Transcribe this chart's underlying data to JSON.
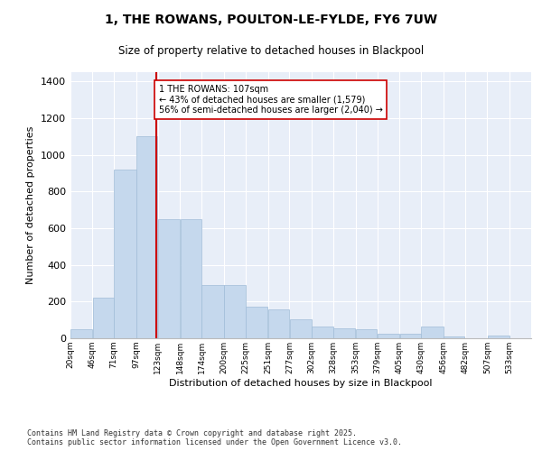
{
  "title": "1, THE ROWANS, POULTON-LE-FYLDE, FY6 7UW",
  "subtitle": "Size of property relative to detached houses in Blackpool",
  "xlabel": "Distribution of detached houses by size in Blackpool",
  "ylabel": "Number of detached properties",
  "bar_color": "#c5d8ed",
  "bar_edge_color": "#a0bcd8",
  "background_color": "#e8eef8",
  "grid_color": "#ffffff",
  "vline_color": "#cc0000",
  "vline_x": 107,
  "annotation_text": "1 THE ROWANS: 107sqm\n← 43% of detached houses are smaller (1,579)\n56% of semi-detached houses are larger (2,040) →",
  "annotation_box_color": "#ffffff",
  "annotation_box_edge": "#cc0000",
  "footer_text": "Contains HM Land Registry data © Crown copyright and database right 2025.\nContains public sector information licensed under the Open Government Licence v3.0.",
  "bin_edges": [
    7.5,
    33,
    58,
    84,
    109,
    135,
    160,
    186,
    211,
    237,
    262,
    288,
    313,
    339,
    364,
    390,
    415,
    441,
    466,
    492,
    518,
    543
  ],
  "bin_labels": [
    "20sqm",
    "46sqm",
    "71sqm",
    "97sqm",
    "123sqm",
    "148sqm",
    "174sqm",
    "200sqm",
    "225sqm",
    "251sqm",
    "277sqm",
    "302sqm",
    "328sqm",
    "353sqm",
    "379sqm",
    "405sqm",
    "430sqm",
    "456sqm",
    "482sqm",
    "507sqm",
    "533sqm"
  ],
  "values": [
    50,
    220,
    920,
    1100,
    650,
    650,
    290,
    290,
    170,
    155,
    105,
    65,
    55,
    50,
    25,
    25,
    65,
    10,
    0,
    15,
    0
  ],
  "ylim": [
    0,
    1450
  ],
  "yticks": [
    0,
    200,
    400,
    600,
    800,
    1000,
    1200,
    1400
  ]
}
